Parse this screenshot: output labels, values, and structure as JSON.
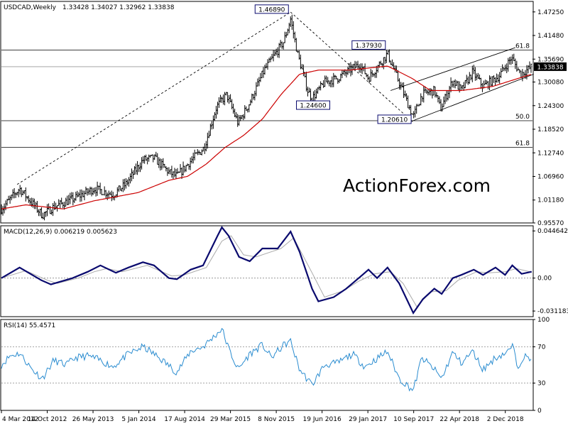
{
  "colors": {
    "price": "#000000",
    "ma": "#cc0000",
    "macd": "#0a0a6e",
    "signal": "#aaaaaa",
    "rsi": "#2a8cd0",
    "label_border": "#0a0a6e",
    "grid": "#888888",
    "watermark": "#d4d4d4"
  },
  "header": {
    "symbol": "USDCAD,Weekly",
    "ohlc": "1.33428 1.34027 1.32962 1.33838"
  },
  "watermark": "ActionForex.com",
  "x_axis_labels": [
    "4 Mar 2012",
    "14 Oct 2012",
    "26 May 2013",
    "5 Jan 2014",
    "17 Aug 2014",
    "29 Mar 2015",
    "8 Nov 2015",
    "19 Jun 2016",
    "29 Jan 2017",
    "10 Sep 2017",
    "22 Apr 2018",
    "2 Dec 2018"
  ],
  "chart_data": [
    {
      "type": "candlestick",
      "title": "USDCAD,Weekly",
      "y_ticks": [
        "1.47250",
        "1.41480",
        "1.35690",
        "1.30080",
        "1.24300",
        "1.18520",
        "1.12740",
        "1.06960",
        "1.01180",
        "0.95570"
      ],
      "ylim": [
        0.9557,
        1.4982
      ],
      "current_price_label": "1.33838",
      "current_price": 1.33838,
      "horizontal_levels": [
        {
          "value": 1.3793,
          "label": "61.8"
        },
        {
          "value": 1.2061,
          "label": "50.0"
        },
        {
          "value": 1.1406,
          "label": "61.8"
        },
        {
          "value": 1.33838,
          "label": ""
        }
      ],
      "price_annotations": [
        {
          "label": "1.46890",
          "value": 1.4689,
          "date": "2016-01-17"
        },
        {
          "label": "1.37930",
          "value": 1.3793,
          "date": "2017-05-05"
        },
        {
          "label": "1.24600",
          "value": 1.246,
          "date": "2016-05-01"
        },
        {
          "label": "1.20610",
          "value": 1.2061,
          "date": "2017-09-08"
        }
      ],
      "price_anchors": [
        [
          "2012-03-04",
          0.99
        ],
        [
          "2012-06-01",
          1.04
        ],
        [
          "2012-09-20",
          0.975
        ],
        [
          "2012-11-15",
          0.995
        ],
        [
          "2013-02-20",
          1.015
        ],
        [
          "2013-06-01",
          1.04
        ],
        [
          "2013-09-01",
          1.025
        ],
        [
          "2013-11-01",
          1.05
        ],
        [
          "2014-01-25",
          1.11
        ],
        [
          "2014-03-20",
          1.115
        ],
        [
          "2014-06-01",
          1.08
        ],
        [
          "2014-07-10",
          1.07
        ],
        [
          "2014-09-20",
          1.11
        ],
        [
          "2014-11-20",
          1.14
        ],
        [
          "2015-01-20",
          1.24
        ],
        [
          "2015-03-10",
          1.27
        ],
        [
          "2015-05-05",
          1.2
        ],
        [
          "2015-07-01",
          1.25
        ],
        [
          "2015-09-10",
          1.33
        ],
        [
          "2015-12-15",
          1.4
        ],
        [
          "2016-01-17",
          1.455
        ],
        [
          "2016-02-20",
          1.37
        ],
        [
          "2016-04-10",
          1.28
        ],
        [
          "2016-05-01",
          1.26
        ],
        [
          "2016-07-01",
          1.3
        ],
        [
          "2016-09-01",
          1.31
        ],
        [
          "2016-12-20",
          1.345
        ],
        [
          "2017-02-01",
          1.31
        ],
        [
          "2017-05-05",
          1.37
        ],
        [
          "2017-07-01",
          1.3
        ],
        [
          "2017-09-08",
          1.215
        ],
        [
          "2017-10-20",
          1.27
        ],
        [
          "2017-12-20",
          1.28
        ],
        [
          "2018-01-20",
          1.235
        ],
        [
          "2018-03-20",
          1.305
        ],
        [
          "2018-05-01",
          1.28
        ],
        [
          "2018-06-25",
          1.325
        ],
        [
          "2018-08-15",
          1.29
        ],
        [
          "2018-11-01",
          1.315
        ],
        [
          "2019-01-01",
          1.36
        ],
        [
          "2019-02-15",
          1.32
        ],
        [
          "2019-04-10",
          1.338
        ]
      ],
      "ma_anchors": [
        [
          "2012-03-04",
          0.99
        ],
        [
          "2012-07-01",
          1.0
        ],
        [
          "2013-01-01",
          0.99
        ],
        [
          "2013-06-01",
          1.01
        ],
        [
          "2014-01-01",
          1.03
        ],
        [
          "2014-06-01",
          1.06
        ],
        [
          "2014-09-01",
          1.07
        ],
        [
          "2014-12-01",
          1.1
        ],
        [
          "2015-03-01",
          1.14
        ],
        [
          "2015-06-01",
          1.17
        ],
        [
          "2015-09-01",
          1.21
        ],
        [
          "2015-12-01",
          1.27
        ],
        [
          "2016-03-01",
          1.32
        ],
        [
          "2016-06-01",
          1.33
        ],
        [
          "2016-11-01",
          1.33
        ],
        [
          "2017-05-05",
          1.34
        ],
        [
          "2017-09-01",
          1.31
        ],
        [
          "2017-12-01",
          1.28
        ],
        [
          "2018-05-01",
          1.28
        ],
        [
          "2018-10-01",
          1.29
        ],
        [
          "2019-04-10",
          1.32
        ]
      ],
      "trendlines": [
        {
          "from": [
            "2012-05-20",
            1.05
          ],
          "to": [
            "2016-01-17",
            1.472
          ],
          "style": "dashed"
        },
        {
          "from": [
            "2016-01-17",
            1.472
          ],
          "to": [
            "2017-09-08",
            1.202
          ],
          "style": "dashed"
        },
        {
          "from": [
            "2017-05-20",
            1.28
          ],
          "to": [
            "2019-01-20",
            1.385
          ],
          "style": "solid"
        },
        {
          "from": [
            "2017-09-01",
            1.205
          ],
          "to": [
            "2019-04-20",
            1.32
          ],
          "style": "solid"
        }
      ]
    },
    {
      "type": "line",
      "title": "MACD(12,26,9) 0.006219 0.005623",
      "y_ticks": [
        "0.044642",
        "0.00",
        "-0.031183"
      ],
      "ylim": [
        -0.0365,
        0.0495
      ],
      "zero_line": 0,
      "series": [
        {
          "name": "MACD",
          "points": [
            [
              "2012-03-04",
              0.0
            ],
            [
              "2012-06-01",
              0.01
            ],
            [
              "2012-09-15",
              -0.002
            ],
            [
              "2012-11-01",
              -0.006
            ],
            [
              "2013-02-15",
              0.0
            ],
            [
              "2013-05-01",
              0.006
            ],
            [
              "2013-07-01",
              0.012
            ],
            [
              "2013-09-15",
              0.005
            ],
            [
              "2013-11-15",
              0.01
            ],
            [
              "2014-01-25",
              0.015
            ],
            [
              "2014-03-20",
              0.012
            ],
            [
              "2014-06-01",
              0.0
            ],
            [
              "2014-07-10",
              -0.001
            ],
            [
              "2014-09-15",
              0.008
            ],
            [
              "2014-11-15",
              0.012
            ],
            [
              "2015-01-25",
              0.04
            ],
            [
              "2015-02-15",
              0.048
            ],
            [
              "2015-03-20",
              0.04
            ],
            [
              "2015-05-10",
              0.02
            ],
            [
              "2015-07-01",
              0.016
            ],
            [
              "2015-09-01",
              0.028
            ],
            [
              "2015-11-15",
              0.028
            ],
            [
              "2016-01-17",
              0.044
            ],
            [
              "2016-03-01",
              0.025
            ],
            [
              "2016-05-01",
              -0.01
            ],
            [
              "2016-06-01",
              -0.022
            ],
            [
              "2016-08-15",
              -0.018
            ],
            [
              "2016-10-15",
              -0.01
            ],
            [
              "2016-12-15",
              0.0
            ],
            [
              "2017-02-01",
              0.008
            ],
            [
              "2017-03-15",
              0.0
            ],
            [
              "2017-05-05",
              0.01
            ],
            [
              "2017-07-01",
              -0.005
            ],
            [
              "2017-09-08",
              -0.033
            ],
            [
              "2017-10-25",
              -0.02
            ],
            [
              "2017-12-20",
              -0.01
            ],
            [
              "2018-01-25",
              -0.015
            ],
            [
              "2018-03-20",
              0.0
            ],
            [
              "2018-05-01",
              0.003
            ],
            [
              "2018-07-01",
              0.008
            ],
            [
              "2018-08-15",
              0.003
            ],
            [
              "2018-10-15",
              0.01
            ],
            [
              "2018-12-01",
              0.003
            ],
            [
              "2019-01-05",
              0.012
            ],
            [
              "2019-02-20",
              0.004
            ],
            [
              "2019-04-10",
              0.006
            ]
          ]
        },
        {
          "name": "Signal",
          "points": [
            [
              "2012-03-04",
              0.0
            ],
            [
              "2012-07-01",
              0.007
            ],
            [
              "2012-10-15",
              -0.002
            ],
            [
              "2012-12-01",
              -0.005
            ],
            [
              "2013-03-15",
              0.0
            ],
            [
              "2013-06-01",
              0.006
            ],
            [
              "2013-08-01",
              0.009
            ],
            [
              "2013-10-15",
              0.006
            ],
            [
              "2014-02-15",
              0.012
            ],
            [
              "2014-06-15",
              0.002
            ],
            [
              "2014-08-15",
              0.003
            ],
            [
              "2014-12-01",
              0.01
            ],
            [
              "2015-02-15",
              0.035
            ],
            [
              "2015-04-01",
              0.04
            ],
            [
              "2015-06-01",
              0.022
            ],
            [
              "2015-08-01",
              0.02
            ],
            [
              "2015-12-01",
              0.028
            ],
            [
              "2016-02-01",
              0.038
            ],
            [
              "2016-05-01",
              0.005
            ],
            [
              "2016-07-01",
              -0.018
            ],
            [
              "2016-10-01",
              -0.012
            ],
            [
              "2016-12-15",
              -0.003
            ],
            [
              "2017-03-01",
              0.004
            ],
            [
              "2017-05-20",
              0.006
            ],
            [
              "2017-07-20",
              -0.005
            ],
            [
              "2017-09-25",
              -0.027
            ],
            [
              "2017-12-01",
              -0.013
            ],
            [
              "2018-02-15",
              -0.012
            ],
            [
              "2018-04-15",
              -0.002
            ],
            [
              "2018-07-15",
              0.006
            ],
            [
              "2018-09-15",
              0.005
            ],
            [
              "2018-12-01",
              0.006
            ],
            [
              "2019-01-25",
              0.009
            ],
            [
              "2019-04-10",
              0.0056
            ]
          ]
        }
      ]
    },
    {
      "type": "line",
      "title": "RSI(14) 55.4571",
      "y_ticks": [
        "100",
        "70",
        "30",
        "0"
      ],
      "ylim": [
        0,
        100
      ],
      "levels": [
        70,
        30
      ],
      "series": [
        {
          "name": "RSI",
          "points": [
            [
              "2012-03-04",
              50
            ],
            [
              "2012-04-15",
              60
            ],
            [
              "2012-06-01",
              63
            ],
            [
              "2012-08-01",
              45
            ],
            [
              "2012-09-20",
              35
            ],
            [
              "2012-11-15",
              55
            ],
            [
              "2013-01-15",
              50
            ],
            [
              "2013-03-01",
              58
            ],
            [
              "2013-05-01",
              60
            ],
            [
              "2013-07-01",
              55
            ],
            [
              "2013-09-01",
              48
            ],
            [
              "2013-11-15",
              62
            ],
            [
              "2014-01-25",
              70
            ],
            [
              "2014-03-01",
              65
            ],
            [
              "2014-05-01",
              55
            ],
            [
              "2014-07-10",
              42
            ],
            [
              "2014-09-15",
              65
            ],
            [
              "2014-11-15",
              70
            ],
            [
              "2015-01-25",
              85
            ],
            [
              "2015-02-15",
              90
            ],
            [
              "2015-03-20",
              68
            ],
            [
              "2015-05-05",
              45
            ],
            [
              "2015-07-01",
              62
            ],
            [
              "2015-09-01",
              72
            ],
            [
              "2015-10-15",
              58
            ],
            [
              "2015-12-15",
              72
            ],
            [
              "2016-01-17",
              76
            ],
            [
              "2016-03-01",
              45
            ],
            [
              "2016-05-01",
              28
            ],
            [
              "2016-07-01",
              50
            ],
            [
              "2016-09-01",
              52
            ],
            [
              "2016-11-15",
              62
            ],
            [
              "2017-01-15",
              48
            ],
            [
              "2017-03-01",
              55
            ],
            [
              "2017-05-05",
              65
            ],
            [
              "2017-07-01",
              35
            ],
            [
              "2017-09-08",
              22
            ],
            [
              "2017-10-20",
              58
            ],
            [
              "2017-12-20",
              45
            ],
            [
              "2018-01-25",
              35
            ],
            [
              "2018-03-20",
              64
            ],
            [
              "2018-05-01",
              52
            ],
            [
              "2018-06-25",
              65
            ],
            [
              "2018-08-15",
              45
            ],
            [
              "2018-10-15",
              58
            ],
            [
              "2018-12-20",
              65
            ],
            [
              "2019-01-05",
              72
            ],
            [
              "2019-02-01",
              48
            ],
            [
              "2019-03-01",
              60
            ],
            [
              "2019-04-10",
              55
            ]
          ]
        }
      ]
    }
  ]
}
